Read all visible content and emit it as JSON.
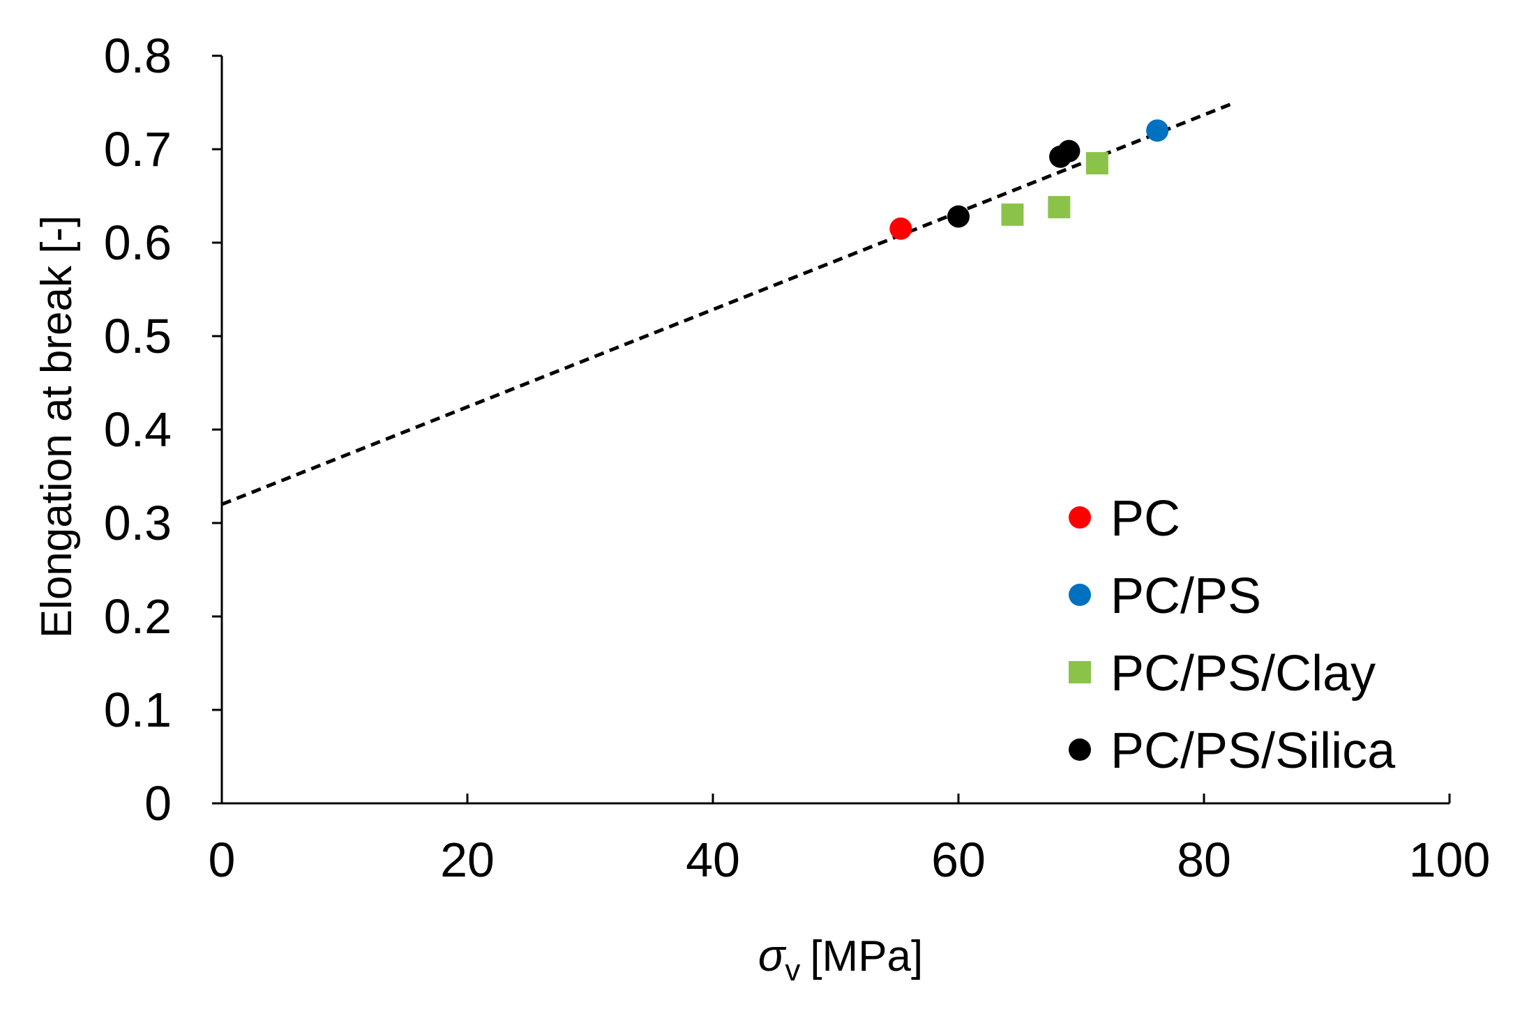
{
  "chart_data": {
    "type": "scatter",
    "title": "",
    "xlabel_symbol": "σ",
    "xlabel_subscript": "v",
    "xlabel_unit": "[MPa]",
    "ylabel": "Elongation at break [-]",
    "xlim": [
      0,
      100
    ],
    "ylim": [
      0,
      0.8
    ],
    "x_ticks": [
      0,
      20,
      40,
      60,
      80,
      100
    ],
    "y_ticks": [
      0,
      0.1,
      0.2,
      0.3,
      0.4,
      0.5,
      0.6,
      0.7,
      0.8
    ],
    "x_tick_labels": [
      "0",
      "20",
      "40",
      "60",
      "80",
      "100"
    ],
    "y_tick_labels": [
      "0",
      "0.1",
      "0.2",
      "0.3",
      "0.4",
      "0.5",
      "0.6",
      "0.7",
      "0.8"
    ],
    "grid": false,
    "legend_position": "bottom-right",
    "series": [
      {
        "name": "PC",
        "marker": "circle",
        "color": "#ff0000",
        "points": [
          {
            "x": 55.3,
            "y": 0.615
          }
        ]
      },
      {
        "name": "PC/PS",
        "marker": "circle",
        "color": "#0070c0",
        "points": [
          {
            "x": 76.2,
            "y": 0.72
          }
        ]
      },
      {
        "name": "PC/PS/Clay",
        "marker": "square",
        "color": "#8bc34a",
        "points": [
          {
            "x": 64.4,
            "y": 0.63
          },
          {
            "x": 68.2,
            "y": 0.638
          },
          {
            "x": 71.3,
            "y": 0.685
          }
        ]
      },
      {
        "name": "PC/PS/Silica",
        "marker": "circle",
        "color": "#000000",
        "points": [
          {
            "x": 60.0,
            "y": 0.628
          },
          {
            "x": 68.3,
            "y": 0.692
          },
          {
            "x": 69.0,
            "y": 0.698
          }
        ]
      }
    ],
    "trendline": {
      "style": "dashed",
      "color": "#000000",
      "x_range": [
        0,
        82.2
      ],
      "intercept": 0.32,
      "slope": 0.00521
    }
  }
}
